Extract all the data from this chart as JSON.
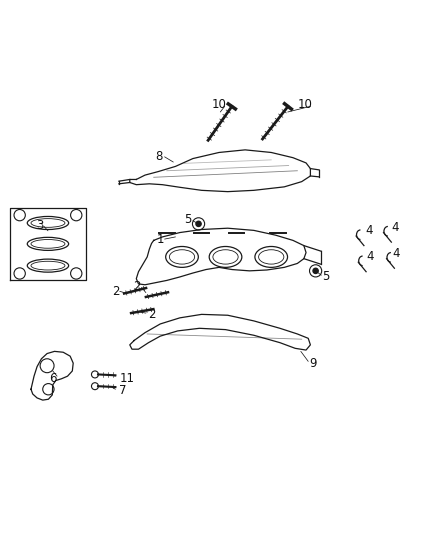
{
  "bg_color": "#ffffff",
  "line_color": "#1a1a1a",
  "label_color": "#111111",
  "fig_width": 4.38,
  "fig_height": 5.33,
  "dpi": 100,
  "label_fontsize": 8.5
}
